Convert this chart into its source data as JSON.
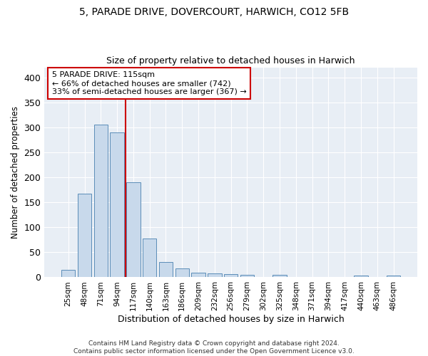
{
  "title_line1": "5, PARADE DRIVE, DOVERCOURT, HARWICH, CO12 5FB",
  "title_line2": "Size of property relative to detached houses in Harwich",
  "xlabel": "Distribution of detached houses by size in Harwich",
  "ylabel": "Number of detached properties",
  "categories": [
    "25sqm",
    "48sqm",
    "71sqm",
    "94sqm",
    "117sqm",
    "140sqm",
    "163sqm",
    "186sqm",
    "209sqm",
    "232sqm",
    "256sqm",
    "279sqm",
    "302sqm",
    "325sqm",
    "348sqm",
    "371sqm",
    "394sqm",
    "417sqm",
    "440sqm",
    "463sqm",
    "486sqm"
  ],
  "values": [
    15,
    167,
    305,
    290,
    190,
    77,
    31,
    18,
    9,
    8,
    6,
    5,
    0,
    5,
    0,
    0,
    0,
    0,
    3,
    0,
    3
  ],
  "bar_color": "#c8d9eb",
  "bar_edge_color": "#5b8db8",
  "background_color": "#e8eef5",
  "grid_color": "#ffffff",
  "vline_color": "#cc0000",
  "annotation_line1": "5 PARADE DRIVE: 115sqm",
  "annotation_line2": "← 66% of detached houses are smaller (742)",
  "annotation_line3": "33% of semi-detached houses are larger (367) →",
  "annotation_box_color": "#ffffff",
  "annotation_box_edge": "#cc0000",
  "footnote": "Contains HM Land Registry data © Crown copyright and database right 2024.\nContains public sector information licensed under the Open Government Licence v3.0.",
  "ylim": [
    0,
    420
  ],
  "yticks": [
    0,
    50,
    100,
    150,
    200,
    250,
    300,
    350,
    400
  ]
}
